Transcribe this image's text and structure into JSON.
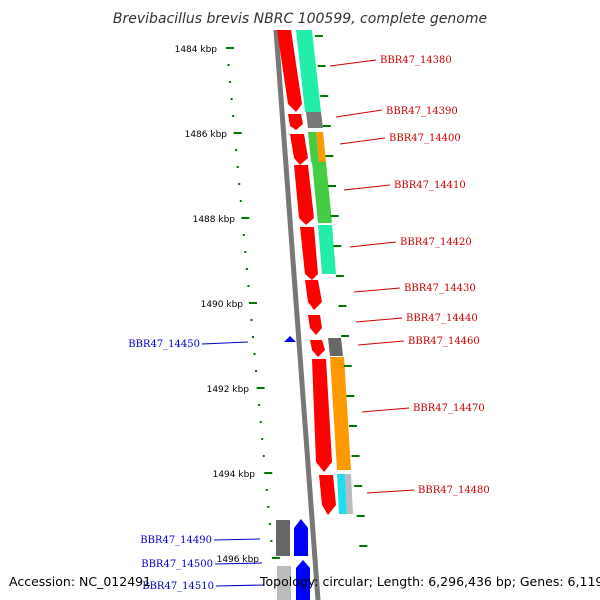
{
  "title": "Brevibacillus brevis NBRC 100599, complete genome",
  "footer": {
    "accession": "Accession: NC_012491",
    "summary": "Topology: circular; Length: 6,296,436 bp; Genes: 6,119"
  },
  "colors": {
    "plus_strand": "#ff0000",
    "minus_strand": "#0000ff",
    "plus_label": "#cc0000",
    "minus_label": "#0000cc",
    "backbone": "#777777",
    "ruler": "#007700"
  },
  "kbp_labels": [
    "1484 kbp",
    "1486 kbp",
    "1488 kbp",
    "1490 kbp",
    "1492 kbp",
    "1494 kbp",
    "1496 kbp"
  ],
  "genes": {
    "plus": [
      "BBR47_14380",
      "BBR47_14390",
      "BBR47_14400",
      "BBR47_14410",
      "BBR47_14420",
      "BBR47_14430",
      "BBR47_14440",
      "BBR47_14460",
      "BBR47_14470",
      "BBR47_14480"
    ],
    "minus": [
      "BBR47_14450",
      "BBR47_14490",
      "BBR47_14500",
      "BBR47_14510"
    ]
  }
}
